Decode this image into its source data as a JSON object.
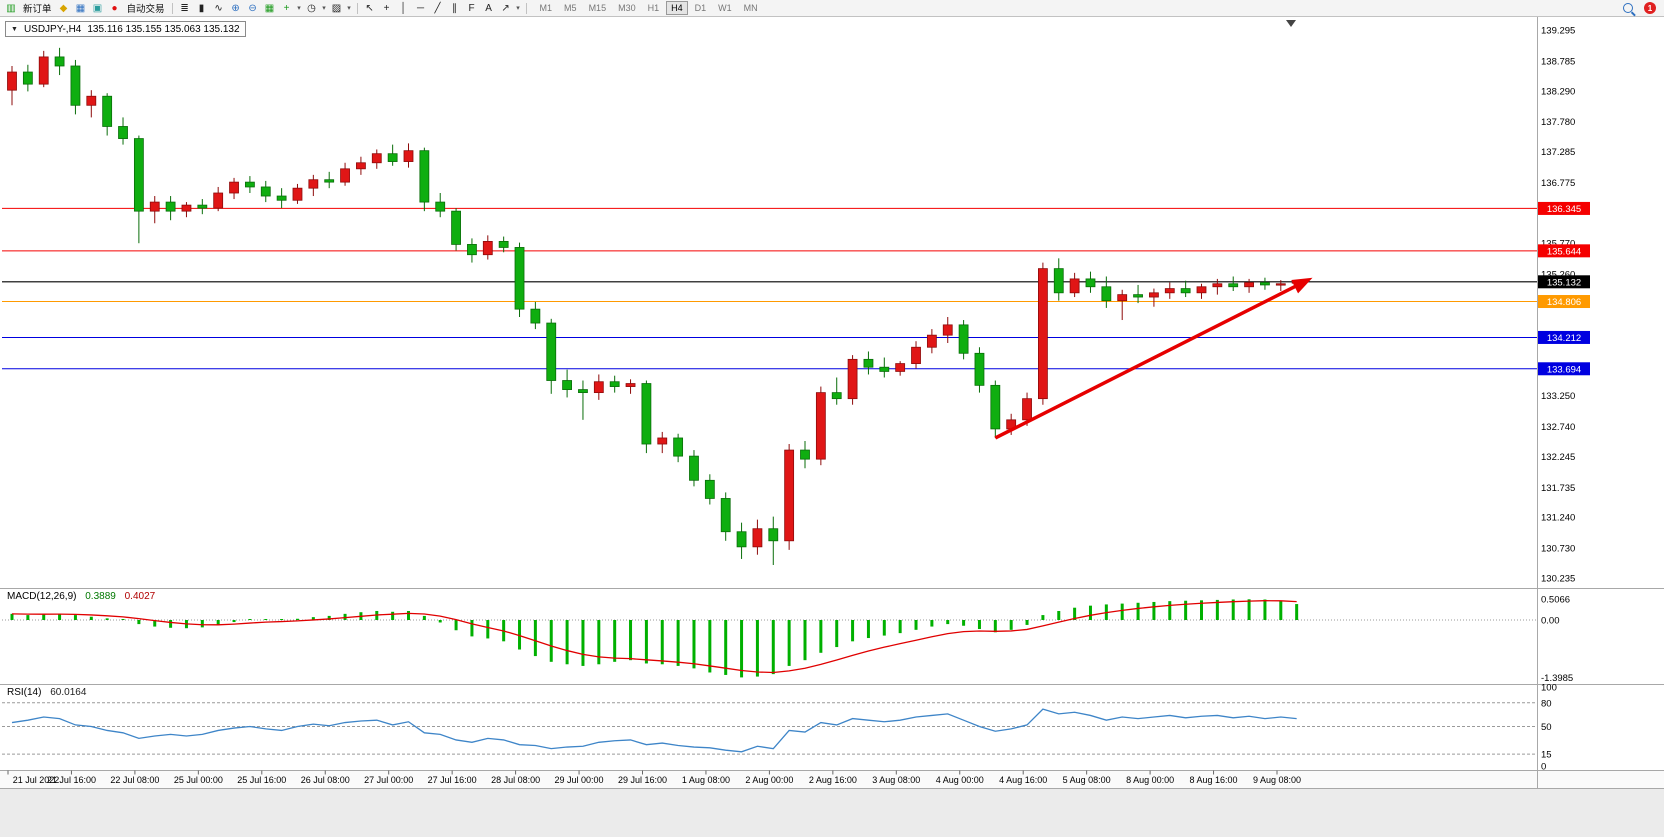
{
  "toolbar": {
    "new_order_label": "新订单",
    "auto_trading_label": "自动交易",
    "timeframes": [
      "M1",
      "M5",
      "M15",
      "M30",
      "H1",
      "H4",
      "D1",
      "W1",
      "MN"
    ],
    "active_timeframe": "H4",
    "badge_count": "1",
    "icons": {
      "new_order": "▥",
      "metaquotes": "◆",
      "chart_window": "▦",
      "profile": "▣",
      "auto_trading": "●",
      "bars_mode": "≣",
      "candles_mode": "▮",
      "line_mode": "∿",
      "zoom_in": "⊕",
      "zoom_out": "⊖",
      "tile_windows": "▦",
      "indicators": "+",
      "periods": "◷",
      "templates": "▨",
      "cursor": "↖",
      "crosshair": "+",
      "vline": "│",
      "hline": "─",
      "trendline": "╱",
      "channel": "∥",
      "fibonacci": "F",
      "text_tool": "A",
      "arrows": "↗",
      "caret": "▾"
    }
  },
  "chart": {
    "dropdown_icon": "▼",
    "symbol_label": "USDJPY-,H4",
    "ohlc_text": "135.116 135.155 135.063 135.132"
  },
  "chart_data": {
    "type": "candlestick",
    "symbol": "USDJPY-",
    "timeframe": "H4",
    "current_ohlc": {
      "open": 135.116,
      "high": 135.155,
      "low": 135.063,
      "close": 135.132
    },
    "colors": {
      "bull": "#e01616",
      "bull_border": "#8e0b0b",
      "bear": "#0fae10",
      "bear_border": "#096d09",
      "macd_histogram": "#00b000",
      "macd_signal": "#e00000",
      "rsi_line": "#3e85c8",
      "arrow": "#e60000"
    },
    "price_axis": {
      "min": 130.235,
      "max": 139.295,
      "ticks": [
        "139.295",
        "138.785",
        "138.290",
        "137.780",
        "137.285",
        "136.775",
        "135.770",
        "135.260",
        "133.250",
        "132.740",
        "132.245",
        "131.735",
        "131.240",
        "130.730",
        "130.235"
      ]
    },
    "levels": [
      {
        "price": 136.345,
        "label": "136.345",
        "color": "#f50000"
      },
      {
        "price": 135.644,
        "label": "135.644",
        "color": "#f50000"
      },
      {
        "price": 134.806,
        "label": "134.806",
        "color": "#ff9a00"
      },
      {
        "price": 134.212,
        "label": "134.212",
        "color": "#0000e0"
      },
      {
        "price": 133.694,
        "label": "133.694",
        "color": "#0000e0"
      }
    ],
    "bid": {
      "price": 135.132,
      "label": "135.132",
      "color": "#000000"
    },
    "trend_arrow": {
      "start_index": 62,
      "start_price": 132.55,
      "end_index": 82,
      "end_price": 135.2
    },
    "time_labels": [
      "21 Jul 2022",
      "21 Jul 16:00",
      "22 Jul 08:00",
      "25 Jul 00:00",
      "25 Jul 16:00",
      "26 Jul 08:00",
      "27 Jul 00:00",
      "27 Jul 16:00",
      "28 Jul 08:00",
      "29 Jul 00:00",
      "29 Jul 16:00",
      "1 Aug 08:00",
      "2 Aug 00:00",
      "2 Aug 16:00",
      "3 Aug 08:00",
      "4 Aug 00:00",
      "4 Aug 16:00",
      "5 Aug 08:00",
      "8 Aug 00:00",
      "8 Aug 16:00",
      "9 Aug 08:00"
    ],
    "candles": [
      [
        138.3,
        138.7,
        138.05,
        138.6
      ],
      [
        138.6,
        138.72,
        138.28,
        138.4
      ],
      [
        138.4,
        138.95,
        138.35,
        138.85
      ],
      [
        138.85,
        139.0,
        138.55,
        138.7
      ],
      [
        138.7,
        138.8,
        137.9,
        138.05
      ],
      [
        138.05,
        138.3,
        137.85,
        138.2
      ],
      [
        138.2,
        138.25,
        137.55,
        137.7
      ],
      [
        137.7,
        137.85,
        137.4,
        137.5
      ],
      [
        137.5,
        137.55,
        135.77,
        136.3
      ],
      [
        136.3,
        136.55,
        136.1,
        136.45
      ],
      [
        136.45,
        136.55,
        136.15,
        136.3
      ],
      [
        136.3,
        136.45,
        136.2,
        136.4
      ],
      [
        136.4,
        136.5,
        136.25,
        136.35
      ],
      [
        136.35,
        136.7,
        136.3,
        136.6
      ],
      [
        136.6,
        136.85,
        136.5,
        136.78
      ],
      [
        136.78,
        136.88,
        136.6,
        136.7
      ],
      [
        136.7,
        136.8,
        136.45,
        136.55
      ],
      [
        136.55,
        136.68,
        136.35,
        136.48
      ],
      [
        136.48,
        136.75,
        136.42,
        136.68
      ],
      [
        136.68,
        136.9,
        136.55,
        136.82
      ],
      [
        136.82,
        136.95,
        136.68,
        136.78
      ],
      [
        136.78,
        137.1,
        136.72,
        137.0
      ],
      [
        137.0,
        137.2,
        136.9,
        137.1
      ],
      [
        137.1,
        137.32,
        137.0,
        137.25
      ],
      [
        137.25,
        137.4,
        137.05,
        137.12
      ],
      [
        137.12,
        137.42,
        137.02,
        137.3
      ],
      [
        137.3,
        137.35,
        136.3,
        136.45
      ],
      [
        136.45,
        136.6,
        136.2,
        136.3
      ],
      [
        136.3,
        136.35,
        135.65,
        135.75
      ],
      [
        135.75,
        135.85,
        135.45,
        135.58
      ],
      [
        135.58,
        135.9,
        135.5,
        135.8
      ],
      [
        135.8,
        135.88,
        135.62,
        135.7
      ],
      [
        135.7,
        135.78,
        134.55,
        134.68
      ],
      [
        134.68,
        134.8,
        134.35,
        134.45
      ],
      [
        134.45,
        134.52,
        133.28,
        133.5
      ],
      [
        133.5,
        133.68,
        133.22,
        133.35
      ],
      [
        133.35,
        133.5,
        132.85,
        133.3
      ],
      [
        133.3,
        133.6,
        133.18,
        133.48
      ],
      [
        133.48,
        133.58,
        133.3,
        133.4
      ],
      [
        133.4,
        133.52,
        133.28,
        133.45
      ],
      [
        133.45,
        133.5,
        132.3,
        132.45
      ],
      [
        132.45,
        132.65,
        132.3,
        132.55
      ],
      [
        132.55,
        132.62,
        132.15,
        132.25
      ],
      [
        132.25,
        132.35,
        131.75,
        131.85
      ],
      [
        131.85,
        131.95,
        131.45,
        131.55
      ],
      [
        131.55,
        131.65,
        130.85,
        131.0
      ],
      [
        131.0,
        131.15,
        130.55,
        130.75
      ],
      [
        130.75,
        131.2,
        130.62,
        131.05
      ],
      [
        131.05,
        131.25,
        130.45,
        130.85
      ],
      [
        130.85,
        132.45,
        130.7,
        132.35
      ],
      [
        132.35,
        132.5,
        132.05,
        132.2
      ],
      [
        132.2,
        133.4,
        132.1,
        133.3
      ],
      [
        133.3,
        133.55,
        133.1,
        133.2
      ],
      [
        133.2,
        133.92,
        133.1,
        133.85
      ],
      [
        133.85,
        133.98,
        133.6,
        133.72
      ],
      [
        133.72,
        133.88,
        133.55,
        133.65
      ],
      [
        133.65,
        133.82,
        133.58,
        133.78
      ],
      [
        133.78,
        134.15,
        133.7,
        134.05
      ],
      [
        134.05,
        134.35,
        133.95,
        134.25
      ],
      [
        134.25,
        134.55,
        134.12,
        134.42
      ],
      [
        134.42,
        134.5,
        133.85,
        133.95
      ],
      [
        133.95,
        134.05,
        133.3,
        133.42
      ],
      [
        133.42,
        133.5,
        132.55,
        132.7
      ],
      [
        132.7,
        132.95,
        132.6,
        132.85
      ],
      [
        132.85,
        133.3,
        132.75,
        133.2
      ],
      [
        133.2,
        135.45,
        133.1,
        135.35
      ],
      [
        135.35,
        135.52,
        134.82,
        134.95
      ],
      [
        134.95,
        135.28,
        134.88,
        135.18
      ],
      [
        135.18,
        135.3,
        134.95,
        135.05
      ],
      [
        135.05,
        135.22,
        134.7,
        134.82
      ],
      [
        134.82,
        135.0,
        134.5,
        134.92
      ],
      [
        134.92,
        135.08,
        134.78,
        134.88
      ],
      [
        134.88,
        135.02,
        134.72,
        134.95
      ],
      [
        134.95,
        135.12,
        134.85,
        135.02
      ],
      [
        135.02,
        135.15,
        134.88,
        134.95
      ],
      [
        134.95,
        135.1,
        134.85,
        135.05
      ],
      [
        135.05,
        135.18,
        134.92,
        135.1
      ],
      [
        135.1,
        135.22,
        134.98,
        135.05
      ],
      [
        135.05,
        135.18,
        134.95,
        135.12
      ],
      [
        135.12,
        135.2,
        135.0,
        135.08
      ],
      [
        135.08,
        135.16,
        134.98,
        135.1
      ],
      [
        135.116,
        135.155,
        135.063,
        135.132
      ]
    ],
    "macd": {
      "label": "MACD(12,26,9)",
      "value_text": "0.3889",
      "signal_text": "0.4027",
      "scale_labels": [
        "0.5066",
        "0.00",
        "-1.3985"
      ],
      "histogram": [
        0.15,
        0.12,
        0.14,
        0.15,
        0.12,
        0.08,
        0.04,
        0.0,
        -0.1,
        -0.16,
        -0.19,
        -0.2,
        -0.18,
        -0.12,
        -0.05,
        0.0,
        0.02,
        0.0,
        0.03,
        0.07,
        0.1,
        0.15,
        0.19,
        0.22,
        0.2,
        0.22,
        0.1,
        -0.06,
        -0.25,
        -0.4,
        -0.45,
        -0.52,
        -0.72,
        -0.88,
        -1.02,
        -1.08,
        -1.12,
        -1.08,
        -1.02,
        -0.98,
        -1.06,
        -1.08,
        -1.12,
        -1.18,
        -1.28,
        -1.34,
        -1.4,
        -1.38,
        -1.32,
        -1.12,
        -0.98,
        -0.8,
        -0.66,
        -0.52,
        -0.44,
        -0.38,
        -0.32,
        -0.24,
        -0.16,
        -0.1,
        -0.14,
        -0.22,
        -0.3,
        -0.24,
        -0.12,
        0.12,
        0.22,
        0.3,
        0.35,
        0.38,
        0.4,
        0.42,
        0.44,
        0.46,
        0.47,
        0.48,
        0.49,
        0.5,
        0.505,
        0.5,
        0.46,
        0.389
      ]
    },
    "rsi": {
      "label": "RSI(14)",
      "value_text": "60.0164",
      "levels": [
        80,
        50,
        15
      ],
      "scale_labels": [
        "100",
        "80",
        "50",
        "15",
        "0"
      ],
      "values": [
        55,
        58,
        62,
        60,
        52,
        50,
        45,
        42,
        35,
        38,
        40,
        38,
        40,
        45,
        48,
        50,
        47,
        45,
        50,
        53,
        51,
        55,
        57,
        58,
        52,
        56,
        42,
        40,
        33,
        30,
        35,
        33,
        27,
        26,
        22,
        24,
        25,
        30,
        32,
        33,
        27,
        29,
        26,
        24,
        23,
        20,
        18,
        25,
        22,
        45,
        43,
        55,
        52,
        60,
        58,
        56,
        58,
        62,
        64,
        66,
        58,
        50,
        44,
        47,
        52,
        72,
        66,
        68,
        64,
        58,
        62,
        60,
        62,
        64,
        61,
        63,
        64,
        61,
        63,
        60,
        62,
        60.0164
      ]
    }
  }
}
